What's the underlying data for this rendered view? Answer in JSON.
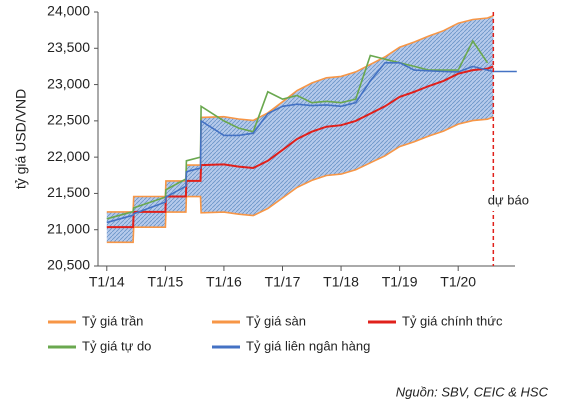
{
  "chart_data": {
    "type": "line",
    "y_label": "tỷ giá USD/VND",
    "x": [
      2014.0,
      2014.45,
      2014.46,
      2015.0,
      2015.01,
      2015.35,
      2015.36,
      2015.6,
      2015.61,
      2016.0,
      2016.25,
      2016.5,
      2016.75,
      2017.0,
      2017.25,
      2017.5,
      2017.75,
      2018.0,
      2018.25,
      2018.5,
      2018.75,
      2019.0,
      2019.25,
      2019.5,
      2019.75,
      2020.0,
      2020.25,
      2020.5,
      2020.6,
      2021.0
    ],
    "series": [
      {
        "name": "Tỷ giá trần",
        "color": "#f79646",
        "values": [
          21246,
          21246,
          21458,
          21458,
          21673,
          21673,
          21890,
          21890,
          22547,
          22557,
          22526,
          22506,
          22609,
          22763,
          22918,
          23021,
          23093,
          23113,
          23175,
          23278,
          23381,
          23515,
          23587,
          23669,
          23742,
          23845,
          23896,
          23917,
          23948,
          null
        ]
      },
      {
        "name": "Tỷ giá sàn",
        "color": "#f79646",
        "values": [
          20826,
          20826,
          21034,
          21034,
          21243,
          21243,
          21456,
          21456,
          21233,
          21243,
          21214,
          21195,
          21292,
          21437,
          21583,
          21680,
          21747,
          21767,
          21825,
          21922,
          22019,
          22145,
          22213,
          22291,
          22359,
          22456,
          22504,
          22523,
          22553,
          null
        ]
      },
      {
        "name": "Tỷ giá chính thức",
        "color": "#e0201b",
        "values": [
          21036,
          21036,
          21246,
          21246,
          21458,
          21458,
          21673,
          21673,
          21890,
          21900,
          21870,
          21850,
          21950,
          22100,
          22250,
          22350,
          22420,
          22440,
          22500,
          22600,
          22700,
          22830,
          22900,
          22980,
          23050,
          23150,
          23200,
          23220,
          23250,
          null
        ]
      },
      {
        "name": "Tỷ giá tự do",
        "color": "#6aa84f",
        "values": [
          21150,
          21250,
          21300,
          21450,
          21550,
          21700,
          21950,
          22000,
          22700,
          22500,
          22400,
          22350,
          22900,
          22800,
          22850,
          22750,
          22770,
          22750,
          22800,
          23400,
          23350,
          23300,
          23250,
          23200,
          23200,
          23200,
          23600,
          23300,
          null,
          null
        ]
      },
      {
        "name": "Tỷ giá liên ngân hàng",
        "color": "#4472c4",
        "values": [
          21100,
          21200,
          21220,
          21380,
          21450,
          21600,
          21800,
          21850,
          22500,
          22300,
          22300,
          22330,
          22600,
          22700,
          22730,
          22710,
          22720,
          22700,
          22750,
          23050,
          23300,
          23300,
          23200,
          23190,
          23180,
          23175,
          23250,
          23200,
          23180,
          23180
        ]
      }
    ],
    "band_color": "#4f81bd",
    "xlim": [
      2013.85,
      2020.97
    ],
    "xticks": [
      {
        "value": 2014,
        "label": "T1/14"
      },
      {
        "value": 2015,
        "label": "T1/15"
      },
      {
        "value": 2016,
        "label": "T1/16"
      },
      {
        "value": 2017,
        "label": "T1/17"
      },
      {
        "value": 2018,
        "label": "T1/18"
      },
      {
        "value": 2019,
        "label": "T1/19"
      },
      {
        "value": 2020,
        "label": "T1/20"
      }
    ],
    "ylim": [
      20500,
      24000
    ],
    "yticks": [
      {
        "value": 20500,
        "label": "20,500"
      },
      {
        "value": 21000,
        "label": "21,000"
      },
      {
        "value": 21500,
        "label": "21,500"
      },
      {
        "value": 22000,
        "label": "22,000"
      },
      {
        "value": 22500,
        "label": "22,500"
      },
      {
        "value": 23000,
        "label": "23,000"
      },
      {
        "value": 23500,
        "label": "23,500"
      },
      {
        "value": 24000,
        "label": "24,000"
      }
    ],
    "grid": false,
    "forecast_x": 2020.6,
    "forecast_label": "dự báo",
    "forecast_color": "#e0201b",
    "source": "Nguồn: SBV, CEIC & HSC"
  }
}
